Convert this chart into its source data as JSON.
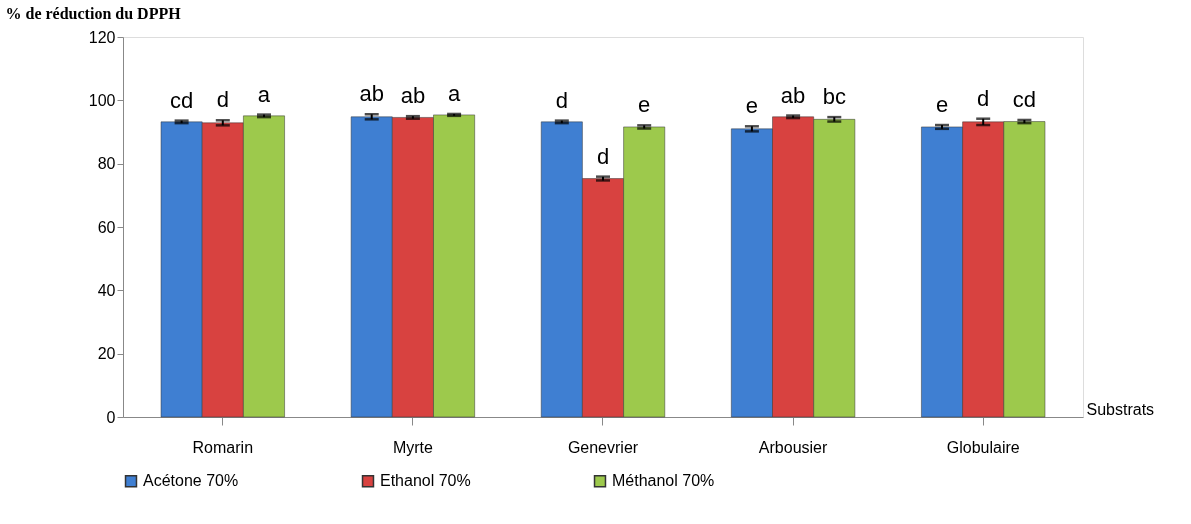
{
  "chart_data": {
    "type": "bar",
    "ylabel": "% de réduction du DPPH",
    "xlabel": "Substrats",
    "categories": [
      "Romarin",
      "Myrte",
      "Genevrier",
      "Arbousier",
      "Globulaire"
    ],
    "series": [
      {
        "name": "Acétone 70%",
        "color": "#3f7fd2",
        "values": [
          93.2,
          94.8,
          93.2,
          91.0,
          91.6
        ],
        "errors": [
          0.4,
          0.8,
          0.4,
          0.8,
          0.6
        ],
        "value_labels": [
          "cd",
          "ab",
          "d",
          "e",
          "e"
        ]
      },
      {
        "name": "Ethanol 70%",
        "color": "#d84240",
        "values": [
          92.9,
          94.6,
          75.3,
          94.8,
          93.2
        ],
        "errors": [
          0.8,
          0.4,
          0.6,
          0.4,
          1.0
        ],
        "value_labels": [
          "d",
          "ab",
          "d",
          "ab",
          "d"
        ]
      },
      {
        "name": "Méthanol 70%",
        "color": "#9dc94c",
        "values": [
          95.1,
          95.4,
          91.6,
          94.0,
          93.3
        ],
        "errors": [
          0.4,
          0.3,
          0.5,
          0.7,
          0.5
        ],
        "value_labels": [
          "a",
          "a",
          "e",
          "bc",
          "cd"
        ]
      }
    ],
    "ylim": [
      0,
      120
    ],
    "yticks": [
      0,
      20,
      40,
      60,
      80,
      100,
      120
    ],
    "grid": false,
    "legend": "bottom"
  }
}
